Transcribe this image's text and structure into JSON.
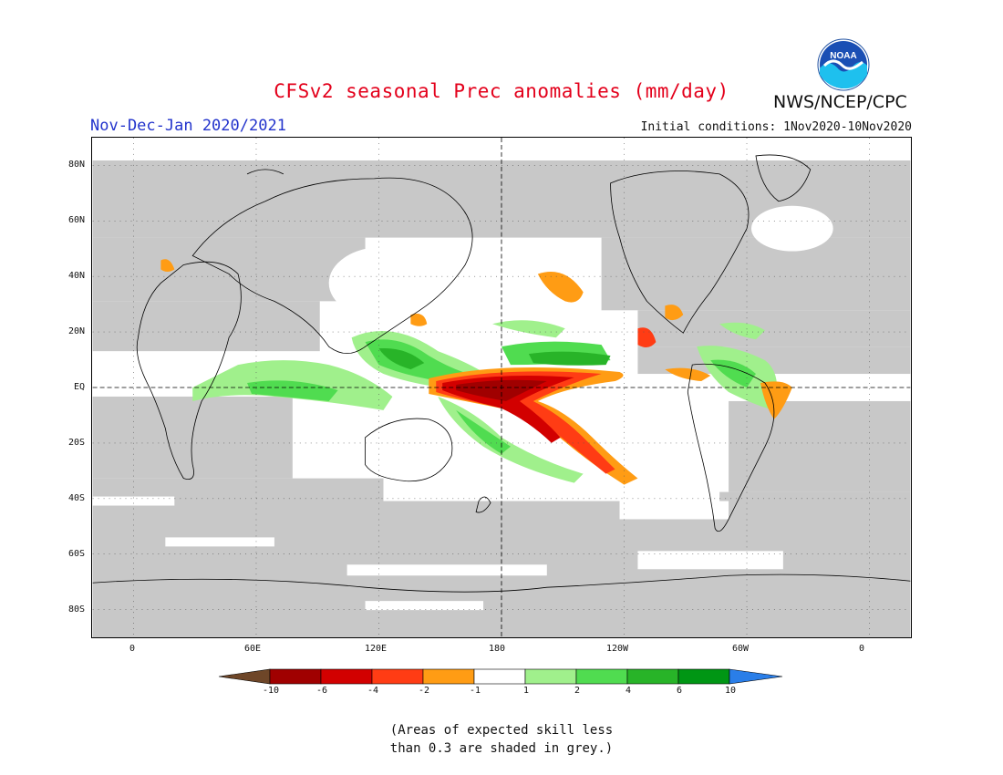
{
  "header": {
    "title": "CFSv2 seasonal Prec anomalies (mm/day)",
    "agency": "NWS/NCEP/CPC",
    "logo_text": "NOAA",
    "season": "Nov-Dec-Jan 2020/2021",
    "initial_conditions": "Initial conditions: 1Nov2020-10Nov2020"
  },
  "map": {
    "projection": "cylindrical equidistant",
    "lat_labels": [
      "80N",
      "60N",
      "40N",
      "20N",
      "EQ",
      "20S",
      "40S",
      "60S",
      "80S"
    ],
    "lat_values": [
      80,
      60,
      40,
      20,
      0,
      -20,
      -40,
      -60,
      -80
    ],
    "lon_labels": [
      "0",
      "60E",
      "120E",
      "180",
      "120W",
      "60W",
      "0"
    ],
    "lon_values": [
      0,
      60,
      120,
      180,
      240,
      300,
      360
    ],
    "lon_range": [
      -20,
      380
    ],
    "lat_range": [
      -90,
      90
    ],
    "reference_lines": [
      "equator",
      "dateline"
    ]
  },
  "legend": {
    "labels": [
      "-10",
      "-6",
      "-4",
      "-2",
      "-1",
      "1",
      "2",
      "4",
      "6",
      "10"
    ],
    "colors": [
      "#6e4628",
      "#a00000",
      "#d20000",
      "#ff3c14",
      "#ff9c14",
      "#ffffff",
      "#a0f08c",
      "#50dc50",
      "#28b428",
      "#009614",
      "#2a7ee8"
    ]
  },
  "colors": {
    "mask": "#c8c8c8",
    "coast": "#000000",
    "title_red": "#e3001b",
    "season_blue": "#2233cc"
  },
  "note": {
    "line1": "(Areas of expected skill less",
    "line2": "than 0.3 are shaded in grey.)"
  }
}
